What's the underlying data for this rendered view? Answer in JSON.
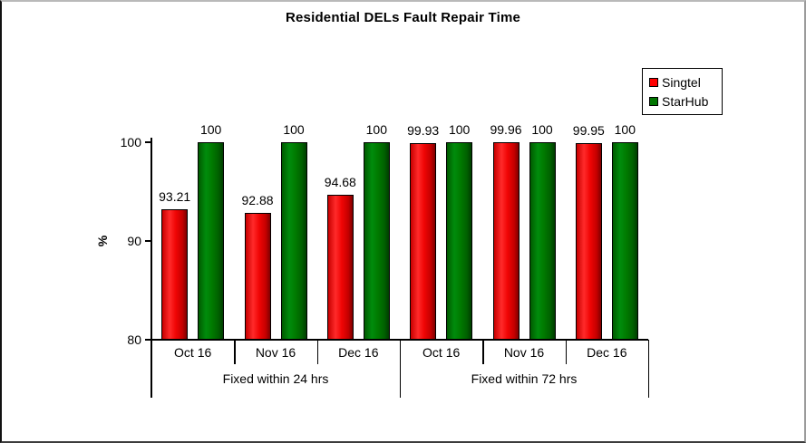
{
  "chart_data": {
    "type": "bar",
    "title": "Residential DELs Fault Repair Time",
    "ylabel": "%",
    "ylim": [
      80,
      100
    ],
    "yticks": [
      100,
      90,
      80
    ],
    "grid": false,
    "legend_position": "top-right",
    "group_labels": [
      "Fixed within 24 hrs",
      "Fixed within 72 hrs"
    ],
    "categories": [
      "Oct 16",
      "Nov 16",
      "Dec 16",
      "Oct 16",
      "Nov 16",
      "Dec 16"
    ],
    "series": [
      {
        "name": "Singtel",
        "color": "#FF0000",
        "values": [
          93.21,
          92.88,
          94.68,
          99.93,
          99.96,
          99.95
        ]
      },
      {
        "name": "StarHub",
        "color": "#007500",
        "values": [
          100,
          100,
          100,
          100,
          100,
          100
        ]
      }
    ]
  }
}
